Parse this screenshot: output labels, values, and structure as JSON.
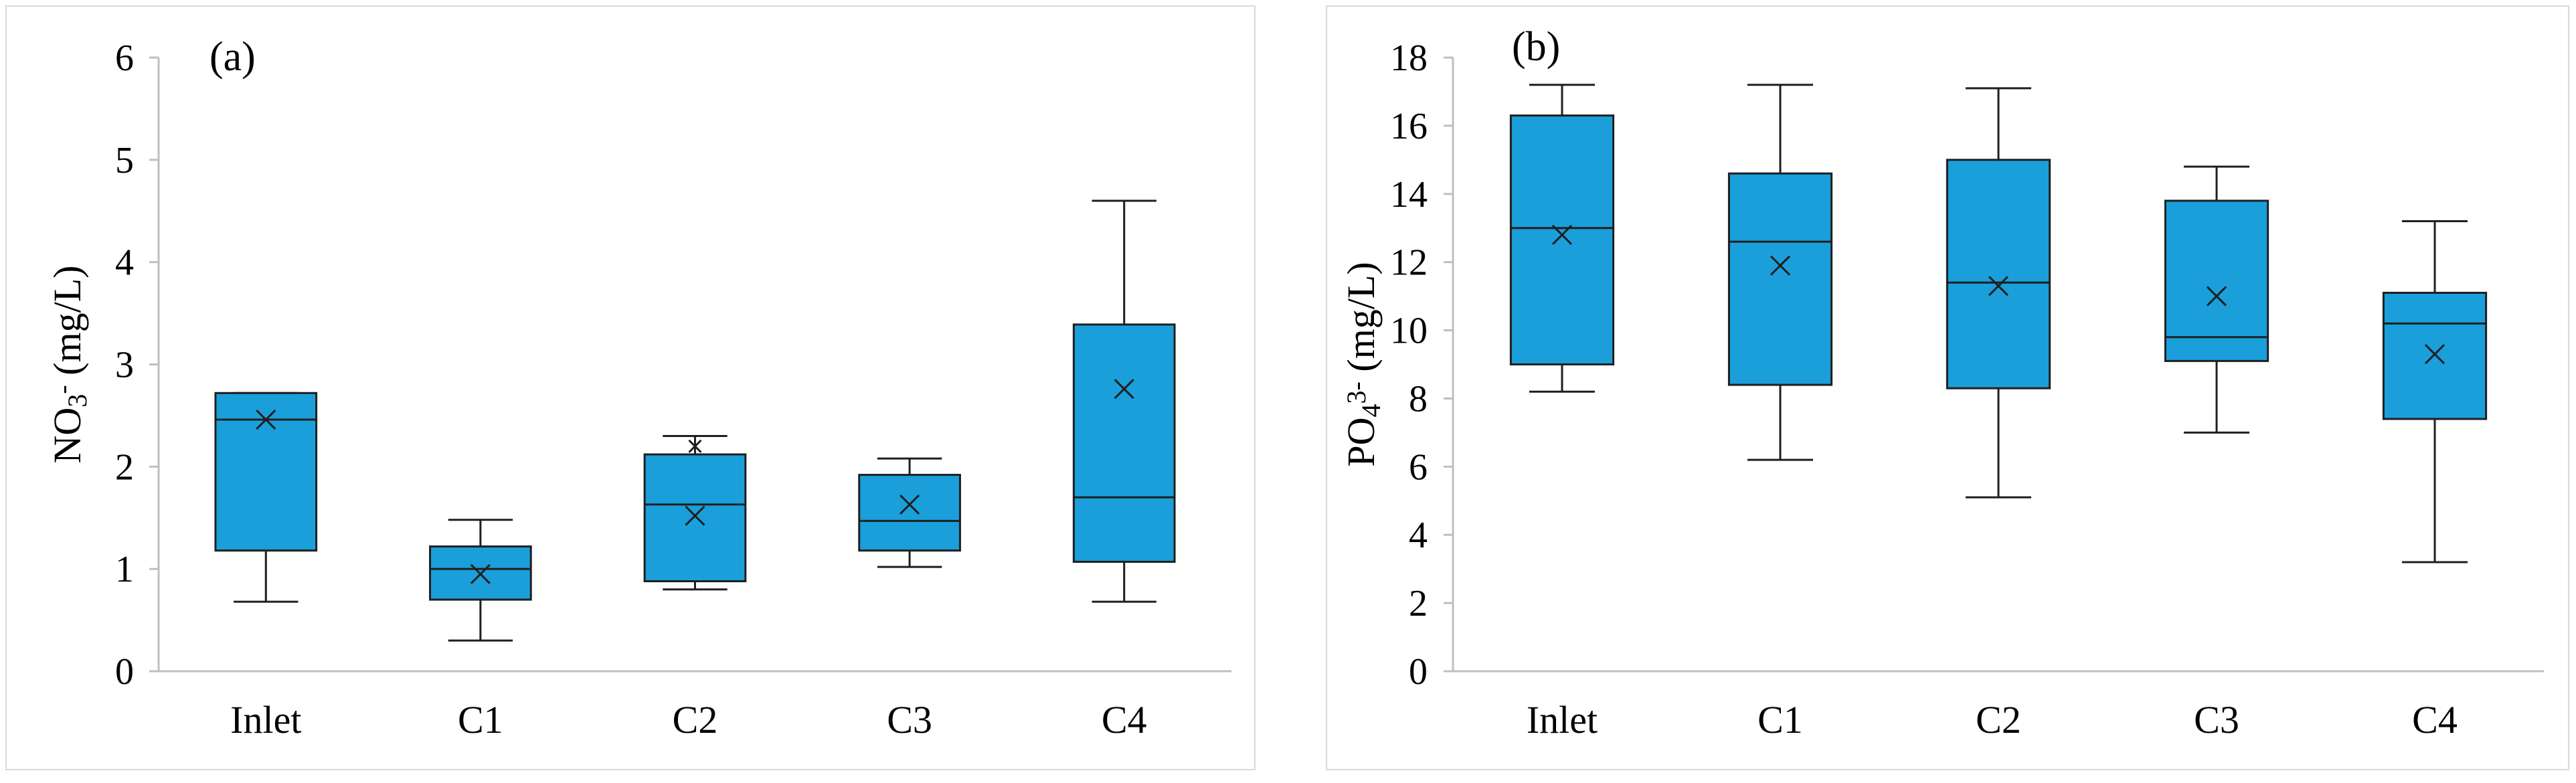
{
  "chart_data": [
    {
      "type": "box",
      "panel_label": "(a)",
      "ylabel": {
        "main": "NO",
        "sub": "3",
        "sup": "-",
        "unit": " (mg/L)"
      },
      "ylim": [
        0,
        6
      ],
      "yticks": [
        0,
        1,
        2,
        3,
        4,
        5,
        6
      ],
      "categories": [
        "Inlet",
        "C1",
        "C2",
        "C3",
        "C4"
      ],
      "boxes": [
        {
          "category": "Inlet",
          "min": 0.68,
          "q1": 1.18,
          "median": 2.46,
          "q3": 2.72,
          "max": 2.72,
          "mean": 2.46,
          "outliers": []
        },
        {
          "category": "C1",
          "min": 0.3,
          "q1": 0.7,
          "median": 1.0,
          "q3": 1.22,
          "max": 1.48,
          "mean": 0.95,
          "outliers": []
        },
        {
          "category": "C2",
          "min": 0.8,
          "q1": 0.88,
          "median": 1.63,
          "q3": 2.12,
          "max": 2.3,
          "mean": 1.52,
          "outliers": [
            2.2
          ]
        },
        {
          "category": "C3",
          "min": 1.02,
          "q1": 1.18,
          "median": 1.47,
          "q3": 1.92,
          "max": 2.08,
          "mean": 1.63,
          "outliers": []
        },
        {
          "category": "C4",
          "min": 0.68,
          "q1": 1.07,
          "median": 1.7,
          "q3": 3.39,
          "max": 4.6,
          "mean": 2.76,
          "outliers": []
        }
      ]
    },
    {
      "type": "box",
      "panel_label": "(b)",
      "ylabel": {
        "main": "PO",
        "sub": "4",
        "sup": "3-",
        "unit": "  (mg/L)"
      },
      "ylim": [
        0,
        18
      ],
      "yticks": [
        0,
        2,
        4,
        6,
        8,
        10,
        12,
        14,
        16,
        18
      ],
      "categories": [
        "Inlet",
        "C1",
        "C2",
        "C3",
        "C4"
      ],
      "boxes": [
        {
          "category": "Inlet",
          "min": 8.2,
          "q1": 9.0,
          "median": 13.0,
          "q3": 16.3,
          "max": 17.2,
          "mean": 12.8,
          "outliers": []
        },
        {
          "category": "C1",
          "min": 6.2,
          "q1": 8.4,
          "median": 12.6,
          "q3": 14.6,
          "max": 17.2,
          "mean": 11.9,
          "outliers": []
        },
        {
          "category": "C2",
          "min": 5.1,
          "q1": 8.3,
          "median": 11.4,
          "q3": 15.0,
          "max": 17.1,
          "mean": 11.3,
          "outliers": []
        },
        {
          "category": "C3",
          "min": 7.0,
          "q1": 9.1,
          "median": 9.8,
          "q3": 13.8,
          "max": 14.8,
          "mean": 11.0,
          "outliers": []
        },
        {
          "category": "C4",
          "min": 3.2,
          "q1": 7.4,
          "median": 10.2,
          "q3": 11.1,
          "max": 13.2,
          "mean": 9.3,
          "outliers": []
        }
      ]
    }
  ],
  "colors": {
    "box_fill": "#1a9fdb",
    "box_stroke": "#1f1f1f",
    "axis": "#bfbfbf",
    "text": "#000000"
  }
}
